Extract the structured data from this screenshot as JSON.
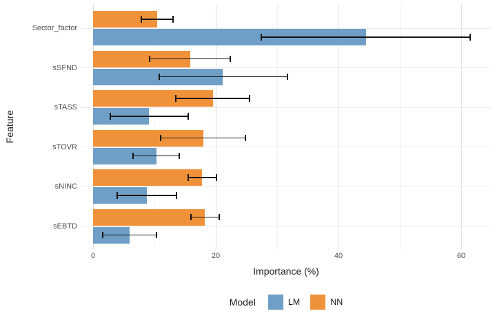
{
  "chart_data": {
    "type": "bar",
    "orientation": "horizontal",
    "title": "",
    "xlabel": "Importance (%)",
    "ylabel": "Feature",
    "xlim": [
      0,
      64.8
    ],
    "xticks": [
      0,
      20,
      40,
      60
    ],
    "minor_gridlines": [
      10,
      30,
      50
    ],
    "grid": "on",
    "categories": [
      "Sector_factor",
      "sSFND",
      "sTASS",
      "sTOVR",
      "sNINC",
      "sEBTD"
    ],
    "legend_title": "Model",
    "legend_position": "bottom",
    "group_order_top_to_bottom": [
      "NN",
      "LM"
    ],
    "series": [
      {
        "name": "LM",
        "color": "#6f9ec6",
        "values": [
          44.5,
          21.1,
          9.1,
          10.3,
          8.8,
          5.9
        ],
        "error_low": [
          27.4,
          10.8,
          2.8,
          6.5,
          3.9,
          1.6
        ],
        "error_high": [
          61.5,
          31.7,
          15.5,
          14.0,
          13.6,
          10.3
        ]
      },
      {
        "name": "NN",
        "color": "#f0923a",
        "values": [
          10.4,
          15.8,
          19.5,
          18.0,
          17.8,
          18.2
        ],
        "error_low": [
          7.9,
          9.2,
          13.5,
          11.0,
          15.5,
          16.0
        ],
        "error_high": [
          13.0,
          22.4,
          25.5,
          24.8,
          20.1,
          20.6
        ]
      }
    ],
    "error_bar_color": "#141414",
    "background_color": "#ffffff",
    "major_grid_color": "#e2e2e2",
    "minor_grid_color": "#f2f2f2"
  }
}
